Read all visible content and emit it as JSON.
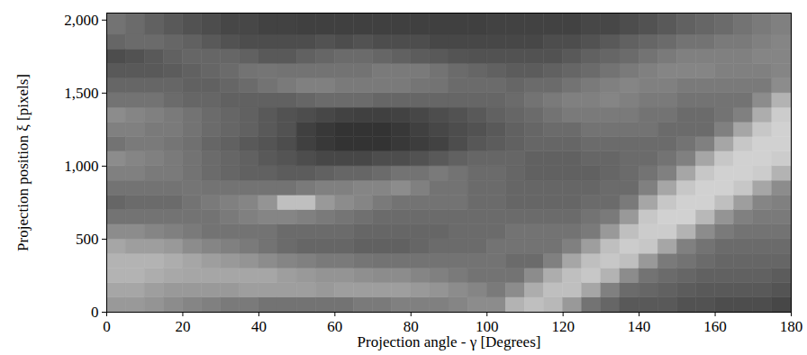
{
  "chart_data": {
    "type": "heatmap",
    "x_label": "Projection angle - γ [Degrees]",
    "y_label": "Projection position ξ [pixels]",
    "xlim": [
      0,
      180
    ],
    "ylim": [
      0,
      2048
    ],
    "xticks": [
      0,
      20,
      40,
      60,
      80,
      100,
      120,
      140,
      160,
      180
    ],
    "yticks": [
      0,
      500,
      {
        "value": 1000,
        "label": "1,000"
      },
      {
        "value": 1500,
        "label": "1,500"
      },
      {
        "value": 2000,
        "label": "2,000"
      }
    ],
    "color": "grayscale",
    "zlim": [
      0,
      100
    ],
    "x_edges": [
      0,
      5,
      10,
      15,
      20,
      25,
      30,
      35,
      40,
      45,
      50,
      55,
      60,
      65,
      70,
      75,
      80,
      85,
      90,
      95,
      100,
      105,
      110,
      115,
      120,
      125,
      130,
      135,
      140,
      145,
      150,
      155,
      160,
      165,
      170,
      175,
      180
    ],
    "y_edges": [
      0,
      100,
      200,
      300,
      400,
      500,
      600,
      700,
      800,
      900,
      1000,
      1100,
      1200,
      1300,
      1400,
      1500,
      1600,
      1700,
      1800,
      1900,
      2048
    ],
    "values": [
      [
        60,
        65,
        70,
        70,
        65,
        55,
        45,
        40,
        45,
        50,
        55,
        45,
        50,
        55,
        45,
        40,
        35,
        30,
        40,
        45
      ],
      [
        60,
        65,
        70,
        70,
        62,
        55,
        45,
        42,
        45,
        50,
        52,
        48,
        50,
        52,
        45,
        40,
        35,
        32,
        42,
        42
      ],
      [
        58,
        62,
        68,
        70,
        62,
        52,
        45,
        42,
        45,
        48,
        50,
        48,
        48,
        50,
        45,
        40,
        35,
        35,
        42,
        38
      ],
      [
        55,
        60,
        66,
        68,
        60,
        50,
        45,
        42,
        45,
        48,
        48,
        46,
        48,
        48,
        42,
        40,
        36,
        38,
        40,
        35
      ],
      [
        52,
        60,
        65,
        65,
        55,
        48,
        45,
        45,
        46,
        45,
        45,
        44,
        45,
        45,
        40,
        38,
        38,
        40,
        38,
        32
      ],
      [
        50,
        60,
        65,
        62,
        52,
        45,
        45,
        48,
        45,
        42,
        42,
        40,
        42,
        42,
        40,
        38,
        40,
        40,
        35,
        30
      ],
      [
        48,
        60,
        65,
        60,
        50,
        45,
        48,
        50,
        45,
        40,
        40,
        38,
        40,
        40,
        38,
        40,
        42,
        40,
        32,
        28
      ],
      [
        48,
        62,
        65,
        58,
        48,
        45,
        50,
        52,
        45,
        38,
        38,
        35,
        38,
        38,
        38,
        42,
        45,
        38,
        30,
        28
      ],
      [
        45,
        62,
        65,
        55,
        45,
        45,
        52,
        58,
        45,
        38,
        35,
        33,
        35,
        35,
        38,
        45,
        46,
        35,
        30,
        26
      ],
      [
        45,
        62,
        62,
        52,
        42,
        42,
        52,
        75,
        45,
        36,
        33,
        30,
        32,
        32,
        38,
        48,
        45,
        35,
        30,
        26
      ],
      [
        45,
        62,
        60,
        50,
        40,
        42,
        50,
        75,
        48,
        36,
        30,
        25,
        25,
        30,
        40,
        50,
        45,
        38,
        30,
        25
      ],
      [
        45,
        60,
        58,
        48,
        40,
        42,
        48,
        60,
        50,
        38,
        28,
        22,
        22,
        28,
        42,
        50,
        45,
        40,
        32,
        25
      ],
      [
        45,
        62,
        58,
        48,
        40,
        42,
        46,
        55,
        50,
        40,
        28,
        20,
        20,
        26,
        42,
        48,
        45,
        42,
        30,
        25
      ],
      [
        48,
        62,
        56,
        46,
        38,
        40,
        44,
        52,
        52,
        40,
        28,
        20,
        20,
        25,
        42,
        48,
        45,
        42,
        32,
        25
      ],
      [
        48,
        62,
        55,
        45,
        38,
        40,
        42,
        48,
        52,
        42,
        30,
        20,
        20,
        25,
        40,
        48,
        48,
        40,
        30,
        25
      ],
      [
        50,
        62,
        55,
        45,
        38,
        40,
        42,
        45,
        55,
        45,
        30,
        22,
        22,
        26,
        40,
        48,
        48,
        38,
        30,
        25
      ],
      [
        50,
        60,
        52,
        45,
        40,
        40,
        42,
        45,
        50,
        45,
        32,
        24,
        25,
        28,
        40,
        46,
        48,
        36,
        30,
        25
      ],
      [
        50,
        58,
        50,
        45,
        42,
        40,
        42,
        45,
        45,
        48,
        35,
        26,
        28,
        30,
        40,
        45,
        45,
        35,
        28,
        25
      ],
      [
        52,
        55,
        48,
        45,
        42,
        42,
        42,
        45,
        45,
        45,
        38,
        30,
        30,
        32,
        40,
        42,
        42,
        33,
        28,
        25
      ],
      [
        55,
        52,
        45,
        45,
        42,
        42,
        42,
        42,
        42,
        42,
        40,
        34,
        32,
        35,
        40,
        42,
        40,
        32,
        28,
        25
      ],
      [
        55,
        48,
        45,
        45,
        45,
        42,
        42,
        42,
        42,
        42,
        40,
        36,
        35,
        38,
        40,
        42,
        38,
        32,
        28,
        26
      ],
      [
        70,
        55,
        45,
        42,
        45,
        45,
        42,
        40,
        40,
        40,
        40,
        38,
        38,
        40,
        42,
        40,
        36,
        32,
        28,
        26
      ],
      [
        75,
        68,
        55,
        42,
        45,
        45,
        42,
        40,
        40,
        38,
        38,
        40,
        40,
        42,
        45,
        42,
        36,
        32,
        28,
        26
      ],
      [
        72,
        75,
        68,
        50,
        45,
        45,
        42,
        40,
        40,
        38,
        38,
        40,
        42,
        45,
        48,
        42,
        38,
        32,
        30,
        26
      ],
      [
        60,
        75,
        75,
        65,
        50,
        45,
        42,
        40,
        40,
        38,
        38,
        40,
        42,
        48,
        50,
        45,
        40,
        35,
        30,
        26
      ],
      [
        45,
        65,
        78,
        75,
        62,
        48,
        45,
        42,
        40,
        38,
        40,
        42,
        45,
        48,
        50,
        48,
        42,
        38,
        32,
        28
      ],
      [
        40,
        50,
        70,
        78,
        75,
        60,
        48,
        42,
        42,
        40,
        40,
        42,
        45,
        48,
        52,
        50,
        45,
        40,
        35,
        28
      ],
      [
        35,
        42,
        55,
        75,
        80,
        75,
        60,
        48,
        42,
        42,
        42,
        42,
        45,
        48,
        50,
        52,
        48,
        42,
        38,
        30
      ],
      [
        35,
        40,
        45,
        60,
        78,
        80,
        78,
        65,
        50,
        45,
        42,
        42,
        45,
        45,
        48,
        50,
        50,
        45,
        40,
        32
      ],
      [
        35,
        38,
        42,
        48,
        65,
        80,
        82,
        78,
        65,
        50,
        45,
        42,
        42,
        45,
        48,
        50,
        52,
        48,
        42,
        35
      ],
      [
        32,
        36,
        40,
        45,
        50,
        70,
        82,
        82,
        78,
        65,
        50,
        45,
        42,
        42,
        45,
        48,
        52,
        50,
        45,
        38
      ],
      [
        32,
        35,
        38,
        42,
        45,
        55,
        72,
        82,
        82,
        78,
        65,
        50,
        42,
        42,
        45,
        48,
        52,
        50,
        45,
        40
      ],
      [
        30,
        35,
        38,
        40,
        42,
        48,
        58,
        75,
        82,
        82,
        78,
        65,
        50,
        45,
        45,
        48,
        50,
        50,
        48,
        42
      ],
      [
        30,
        35,
        38,
        40,
        42,
        45,
        50,
        62,
        78,
        82,
        82,
        78,
        65,
        50,
        45,
        48,
        50,
        50,
        48,
        45
      ],
      [
        30,
        35,
        38,
        40,
        42,
        45,
        48,
        52,
        65,
        80,
        82,
        82,
        78,
        68,
        55,
        48,
        50,
        52,
        50,
        48
      ],
      [
        28,
        33,
        36,
        40,
        42,
        45,
        48,
        50,
        55,
        70,
        80,
        82,
        82,
        80,
        70,
        55,
        52,
        52,
        52,
        50
      ]
    ]
  }
}
